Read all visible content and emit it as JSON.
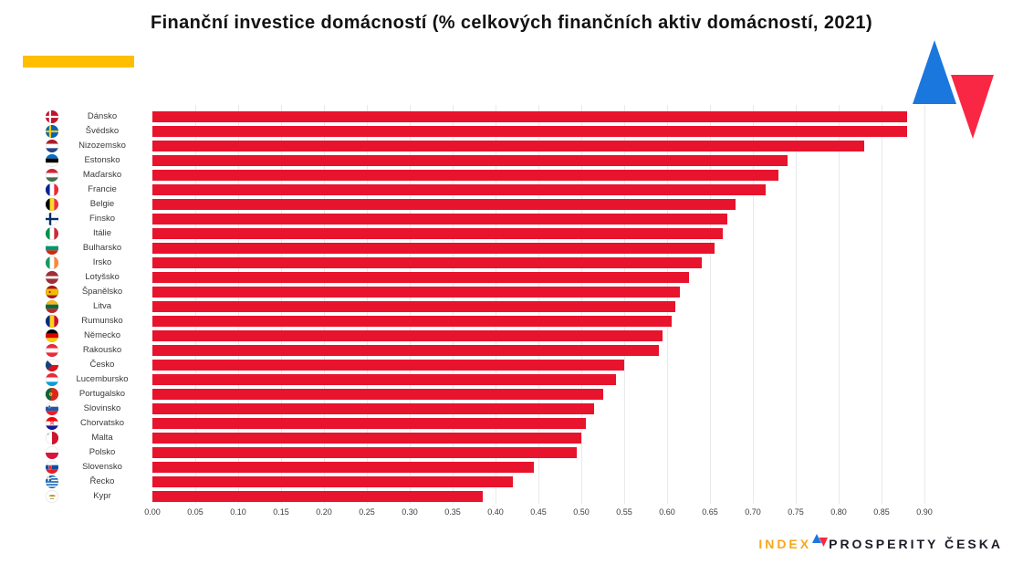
{
  "header": {
    "title": "Finanční investice domácností (% celkových finančních aktiv domácností, 2021)"
  },
  "decor": {
    "accent_color": "#ffbf00",
    "triangle_up_color": "#1a77dd",
    "triangle_down_color": "#f92644"
  },
  "chart_data": {
    "type": "bar",
    "orientation": "horizontal",
    "title": "Finanční investice domácností (% celkových finančních aktiv domácností, 2021)",
    "categories": [
      "Dánsko",
      "Švédsko",
      "Nizozemsko",
      "Estonsko",
      "Maďarsko",
      "Francie",
      "Belgie",
      "Finsko",
      "Itálie",
      "Bulharsko",
      "Irsko",
      "Lotyšsko",
      "Španělsko",
      "Litva",
      "Rumunsko",
      "Německo",
      "Rakousko",
      "Česko",
      "Lucembursko",
      "Portugalsko",
      "Slovinsko",
      "Chorvatsko",
      "Malta",
      "Polsko",
      "Slovensko",
      "Řecko",
      "Kypr"
    ],
    "values": [
      0.88,
      0.88,
      0.83,
      0.74,
      0.73,
      0.715,
      0.68,
      0.67,
      0.665,
      0.655,
      0.64,
      0.625,
      0.615,
      0.61,
      0.605,
      0.595,
      0.59,
      0.55,
      0.54,
      0.525,
      0.515,
      0.505,
      0.5,
      0.495,
      0.445,
      0.42,
      0.385
    ],
    "flags": [
      "dk",
      "se",
      "nl",
      "ee",
      "hu",
      "fr",
      "be",
      "fi",
      "it",
      "bg",
      "ie",
      "lv",
      "es",
      "lt",
      "ro",
      "de",
      "at",
      "cz",
      "lu",
      "pt",
      "si",
      "hr",
      "mt",
      "pl",
      "sk",
      "gr",
      "cy"
    ],
    "x_ticks": [
      "0.00",
      "0.05",
      "0.10",
      "0.15",
      "0.20",
      "0.25",
      "0.30",
      "0.35",
      "0.40",
      "0.45",
      "0.50",
      "0.55",
      "0.60",
      "0.65",
      "0.70",
      "0.75",
      "0.80",
      "0.85",
      "0.90"
    ],
    "xlim": [
      0,
      0.95
    ],
    "grid": true,
    "gridline_color": "#e9e9e9",
    "bar_color": "#e8132c",
    "legend": null,
    "xlabel": "",
    "ylabel": ""
  },
  "footer": {
    "logo_index": "INDEX",
    "logo_rest": "PROSPERITY ČESKA"
  }
}
